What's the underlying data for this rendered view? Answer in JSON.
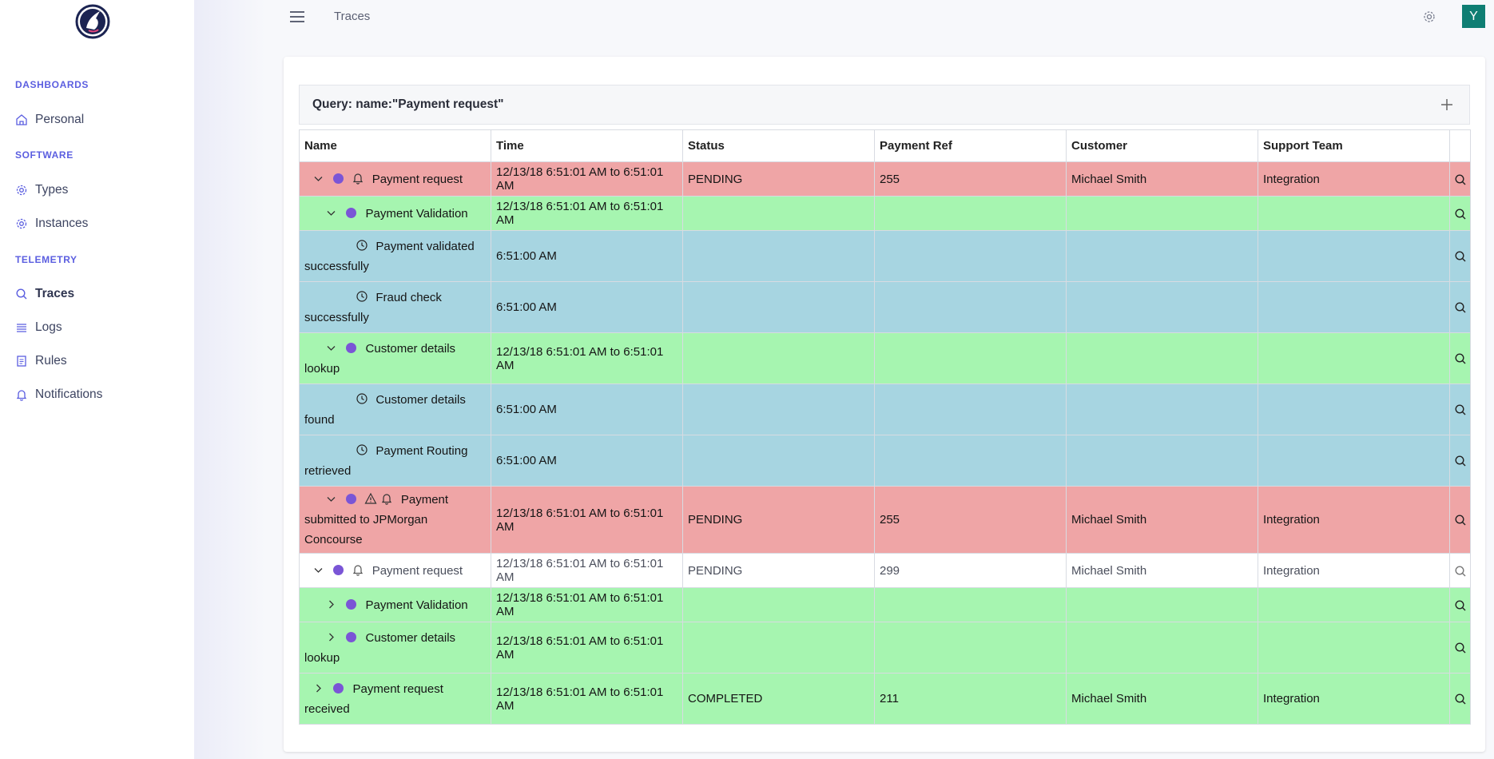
{
  "sidebar": {
    "sections": [
      {
        "label": "DASHBOARDS",
        "items": [
          {
            "label": "Personal",
            "icon": "home-icon"
          }
        ]
      },
      {
        "label": "SOFTWARE",
        "items": [
          {
            "label": "Types",
            "icon": "gear-icon"
          },
          {
            "label": "Instances",
            "icon": "gear-icon"
          }
        ]
      },
      {
        "label": "TELEMETRY",
        "items": [
          {
            "label": "Traces",
            "icon": "search-icon",
            "active": true
          },
          {
            "label": "Logs",
            "icon": "list-icon"
          },
          {
            "label": "Rules",
            "icon": "document-icon"
          },
          {
            "label": "Notifications",
            "icon": "bell-icon"
          }
        ]
      }
    ]
  },
  "header": {
    "title": "Traces",
    "avatar_letter": "Y"
  },
  "query": {
    "text": "Query: name:\"Payment request\""
  },
  "table": {
    "columns": [
      "Name",
      "Time",
      "Status",
      "Payment Ref",
      "Customer",
      "Support Team"
    ],
    "rows": [
      {
        "color": "red",
        "name": "Payment request",
        "time": "12/13/18 6:51:01 AM to 6:51:01 AM",
        "status": "PENDING",
        "ref": "255",
        "customer": "Michael Smith",
        "team": "Integration"
      },
      {
        "color": "green",
        "name": "Payment Validation",
        "time": "12/13/18 6:51:01 AM to 6:51:01 AM",
        "status": "",
        "ref": "",
        "customer": "",
        "team": ""
      },
      {
        "color": "blue",
        "name": "Payment validated successfully",
        "time": "6:51:00 AM",
        "status": "",
        "ref": "",
        "customer": "",
        "team": ""
      },
      {
        "color": "blue",
        "name": "Fraud check successfully",
        "time": "6:51:00 AM",
        "status": "",
        "ref": "",
        "customer": "",
        "team": ""
      },
      {
        "color": "green",
        "name": "Customer details lookup",
        "time": "12/13/18 6:51:01 AM to 6:51:01 AM",
        "status": "",
        "ref": "",
        "customer": "",
        "team": ""
      },
      {
        "color": "blue",
        "name": "Customer details found",
        "time": "6:51:00 AM",
        "status": "",
        "ref": "",
        "customer": "",
        "team": ""
      },
      {
        "color": "blue",
        "name": "Payment Routing retrieved",
        "time": "6:51:00 AM",
        "status": "",
        "ref": "",
        "customer": "",
        "team": ""
      },
      {
        "color": "red",
        "name": "Payment submitted to JPMorgan Concourse",
        "time": "12/13/18 6:51:01 AM to 6:51:01 AM",
        "status": "PENDING",
        "ref": "255",
        "customer": "Michael Smith",
        "team": "Integration"
      },
      {
        "color": "white",
        "name": "Payment request",
        "time": "12/13/18 6:51:01 AM to 6:51:01 AM",
        "status": "PENDING",
        "ref": "299",
        "customer": "Michael Smith",
        "team": "Integration"
      },
      {
        "color": "green",
        "name": "Payment Validation",
        "time": "12/13/18 6:51:01 AM to 6:51:01 AM",
        "status": "",
        "ref": "",
        "customer": "",
        "team": ""
      },
      {
        "color": "green",
        "name": "Customer details lookup",
        "time": "12/13/18 6:51:01 AM to 6:51:01 AM",
        "status": "",
        "ref": "",
        "customer": "",
        "team": ""
      },
      {
        "color": "green",
        "name": "Payment request received",
        "time": "12/13/18 6:51:01 AM to 6:51:01 AM",
        "status": "COMPLETED",
        "ref": "211",
        "customer": "Michael Smith",
        "team": "Integration"
      }
    ]
  },
  "colors": {
    "accent": "#5b5ee0",
    "red_row": "#efa5a6",
    "green_row": "#a6f5b0",
    "blue_row": "#a7d5e1",
    "dot": "#7a55d6",
    "avatar": "#0f7e73"
  }
}
